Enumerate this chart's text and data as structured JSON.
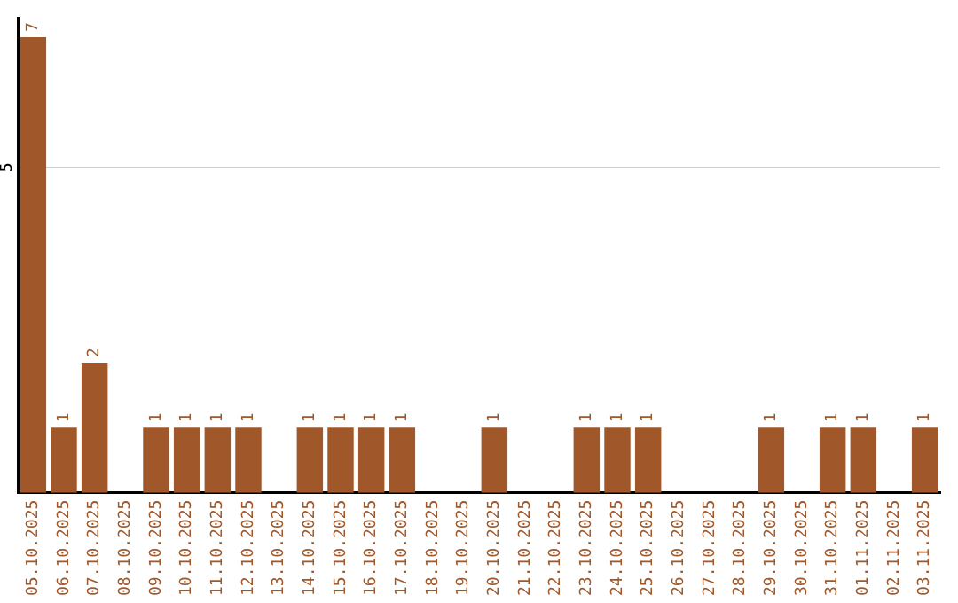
{
  "chart_data": {
    "type": "bar",
    "categories": [
      "05.10.2025",
      "06.10.2025",
      "07.10.2025",
      "08.10.2025",
      "09.10.2025",
      "10.10.2025",
      "11.10.2025",
      "12.10.2025",
      "13.10.2025",
      "14.10.2025",
      "15.10.2025",
      "16.10.2025",
      "17.10.2025",
      "18.10.2025",
      "19.10.2025",
      "20.10.2025",
      "21.10.2025",
      "22.10.2025",
      "23.10.2025",
      "24.10.2025",
      "25.10.2025",
      "26.10.2025",
      "27.10.2025",
      "28.10.2025",
      "29.10.2025",
      "30.10.2025",
      "31.10.2025",
      "01.11.2025",
      "02.11.2025",
      "03.11.2025"
    ],
    "values": [
      7,
      1,
      2,
      0,
      1,
      1,
      1,
      1,
      0,
      1,
      1,
      1,
      1,
      0,
      0,
      1,
      0,
      0,
      1,
      1,
      1,
      0,
      0,
      0,
      1,
      0,
      1,
      1,
      0,
      1
    ],
    "value_labels": [
      "7",
      "1",
      "2",
      null,
      "1",
      "1",
      "1",
      "1",
      null,
      "1",
      "1",
      "1",
      "1",
      null,
      null,
      "1",
      null,
      null,
      "1",
      "1",
      "1",
      null,
      null,
      null,
      "1",
      null,
      "1",
      "1",
      null,
      "1"
    ],
    "color": "#a0582a",
    "ylim": [
      0,
      7.3
    ],
    "yticks": [
      5
    ],
    "grid": "y",
    "legend": false
  }
}
